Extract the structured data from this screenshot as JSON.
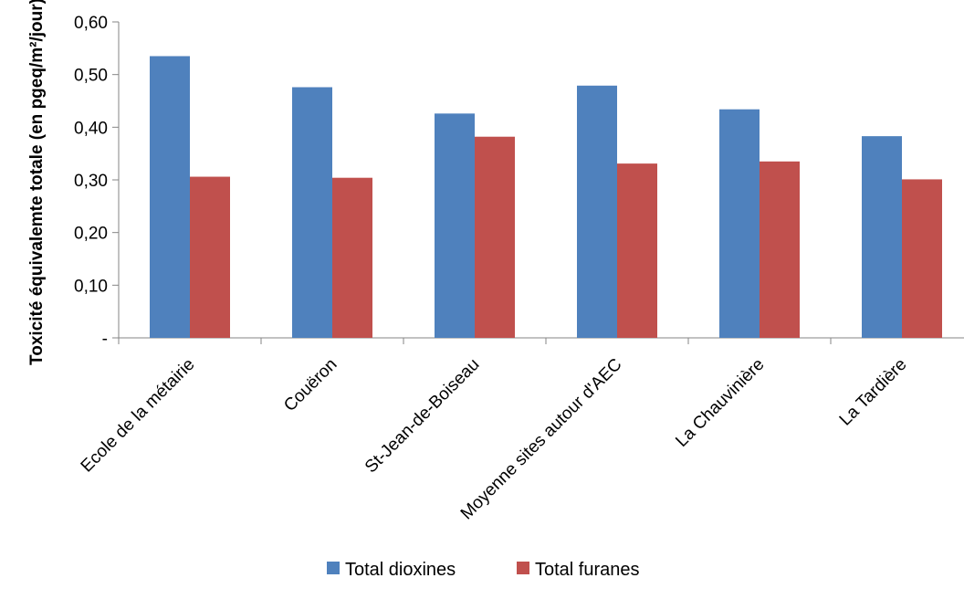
{
  "chart_data": {
    "type": "bar",
    "ylabel": "Toxicité équivalemte totale (en pgeq/m²/jour)",
    "xlabel": "",
    "ylim": [
      0,
      0.6
    ],
    "yticks": [
      0,
      0.1,
      0.2,
      0.3,
      0.4,
      0.5,
      0.6
    ],
    "ytick_labels": [
      "-",
      "0,10",
      "0,20",
      "0,30",
      "0,40",
      "0,50",
      "0,60"
    ],
    "grid": false,
    "legend_position": "bottom",
    "categories": [
      "Ecole de la métairie",
      "Couëron",
      "St-Jean-de-Boiseau",
      "Moyenne sites autour d'AEC",
      "La Chauvinière",
      "La Tardière"
    ],
    "series": [
      {
        "name": "Total dioxines",
        "color": "#4F81BD",
        "values": [
          0.535,
          0.476,
          0.426,
          0.479,
          0.434,
          0.383
        ]
      },
      {
        "name": "Total furanes",
        "color": "#C0504D",
        "values": [
          0.306,
          0.304,
          0.382,
          0.331,
          0.335,
          0.301
        ]
      }
    ]
  }
}
